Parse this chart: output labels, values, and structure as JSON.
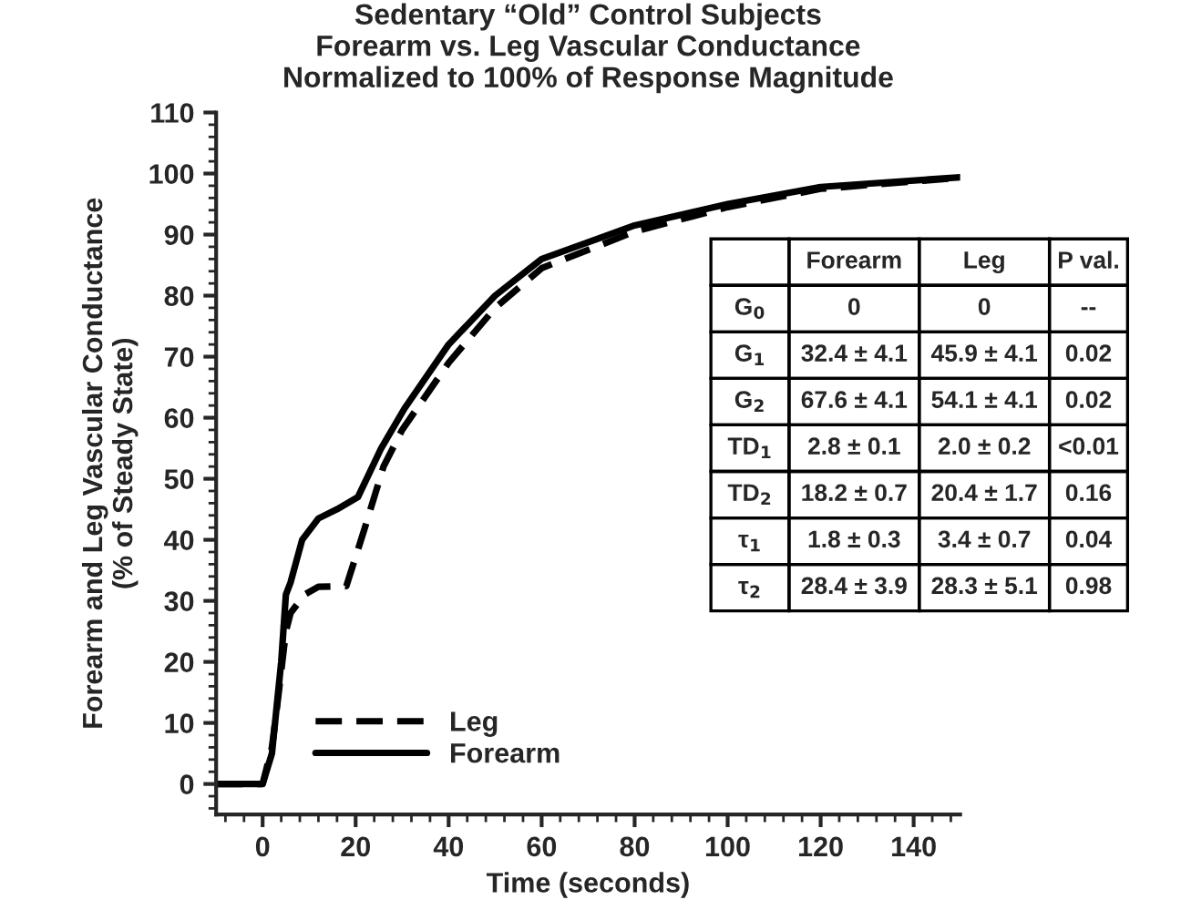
{
  "chart_data": {
    "type": "line",
    "title": "Sedentary “Old” Control Subjects\nForearm vs. Leg Vascular Conductance\nNormalized to 100% of Response Magnitude",
    "xlabel": "Time (seconds)",
    "ylabel": "Forearm and Leg Vascular Conductance\n(% of Steady State)",
    "series": [
      {
        "name": "Leg",
        "color": "#000000",
        "line_style": "dashed",
        "x": [
          -10,
          0,
          2,
          3,
          5,
          6,
          9,
          12,
          18,
          22,
          26,
          30,
          40,
          50,
          60,
          80,
          100,
          120,
          150
        ],
        "values": [
          0,
          0,
          6,
          12,
          25,
          28,
          31,
          32.3,
          32.4,
          42,
          52,
          58,
          69,
          78,
          84.5,
          90.5,
          94.5,
          97.5,
          99.3
        ]
      },
      {
        "name": "Forearm",
        "color": "#000000",
        "line_style": "solid",
        "x": [
          -10,
          0,
          2,
          4,
          5,
          6,
          8.5,
          12,
          16,
          20.5,
          25.5,
          30.5,
          40,
          50,
          60,
          80,
          100,
          120,
          150
        ],
        "values": [
          0,
          0,
          5,
          20,
          31,
          33,
          40,
          43.5,
          45,
          47,
          55,
          61.5,
          72,
          80,
          86,
          91.5,
          95,
          97.8,
          99.4
        ]
      }
    ],
    "xlim": [
      -10,
      150
    ],
    "xticks": [
      0,
      20,
      40,
      60,
      80,
      100,
      120,
      140
    ],
    "ylim": [
      -5,
      110
    ],
    "yticks": [
      0,
      10,
      20,
      30,
      40,
      50,
      60,
      70,
      80,
      90,
      100,
      110
    ],
    "grid": false,
    "legend": "bottom left",
    "annotations": [
      "Forearm",
      "Leg",
      "P val.",
      "G$_{0}$",
      "0",
      "0",
      "--",
      "G$_{1}$",
      "32.4 ± 4.1",
      "45.9 ± 4.1",
      "0.02",
      "G$_{2}$",
      "67.6 ± 4.1",
      "54.1 ± 4.1",
      "0.02",
      "TD$_{1}$",
      "2.8 ± 0.1",
      "2.0 ± 0.2",
      "<0.01",
      "TD$_{2}$",
      "18.2 ± 0.7",
      "20.4 ± 1.7",
      "0.16",
      "τ$_{1}$",
      "1.8 ± 0.3",
      "3.4 ± 0.7",
      "0.04",
      "τ$_{2}$",
      "28.4 ± 3.9",
      "28.3 ± 5.1",
      "0.98"
    ]
  }
}
